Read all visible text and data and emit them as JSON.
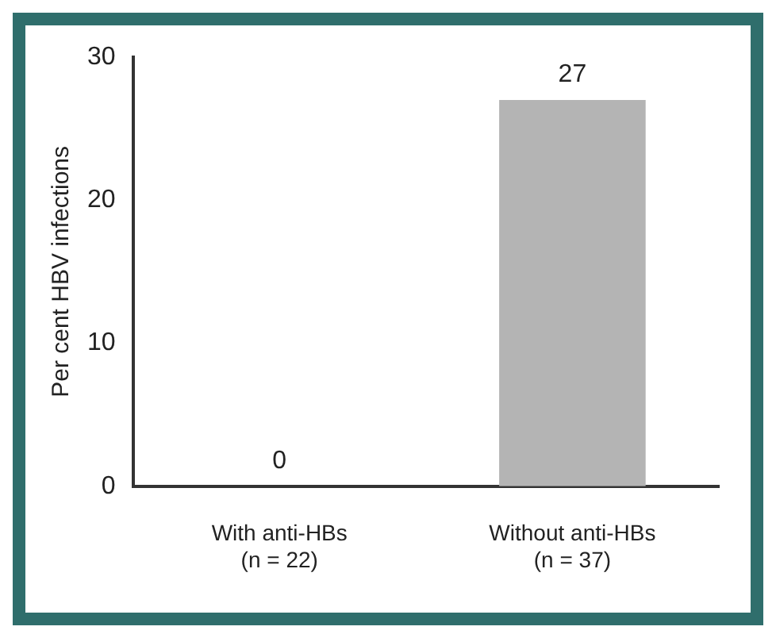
{
  "chart_data": {
    "type": "bar",
    "ylabel": "Per cent HBV infections",
    "categories": [
      "With anti-HBs\n(n = 22)",
      "Without anti-HBs\n(n = 37)"
    ],
    "values": [
      0,
      27
    ],
    "color": "#b4b4b4",
    "ylim": [
      0,
      30
    ],
    "yticks": [
      0,
      10,
      20,
      30
    ],
    "grid": false,
    "legend": false,
    "data_labels": true
  }
}
